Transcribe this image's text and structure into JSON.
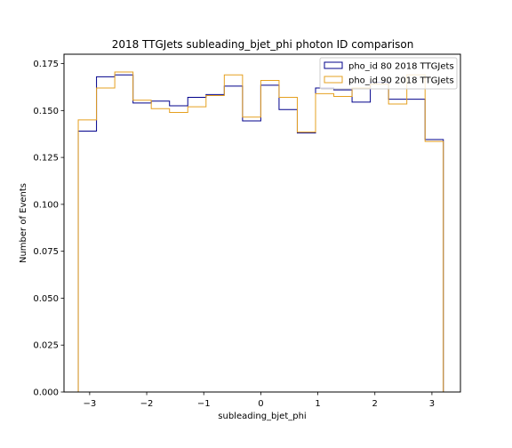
{
  "chart_data": {
    "type": "histogram-step",
    "title": "2018 TTGJets subleading_bjet_phi photon ID comparison",
    "xlabel": "subleading_bjet_phi",
    "ylabel": "Number of Events",
    "xlim": [
      -3.45,
      3.5
    ],
    "ylim": [
      0.0,
      0.18
    ],
    "grid": false,
    "legend_position": "top-right",
    "bin_edges": [
      -3.2,
      -2.88,
      -2.56,
      -2.24,
      -1.92,
      -1.6,
      -1.28,
      -0.96,
      -0.64,
      -0.32,
      0.0,
      0.32,
      0.64,
      0.96,
      1.28,
      1.6,
      1.92,
      2.24,
      2.56,
      2.88,
      3.2
    ],
    "x_ticks": [
      -3,
      -2,
      -1,
      0,
      1,
      2,
      3
    ],
    "x_tick_labels": [
      "−3",
      "−2",
      "−1",
      "0",
      "1",
      "2",
      "3"
    ],
    "y_ticks": [
      0.0,
      0.025,
      0.05,
      0.075,
      0.1,
      0.125,
      0.15,
      0.175
    ],
    "y_tick_labels": [
      "0.000",
      "0.025",
      "0.050",
      "0.075",
      "0.100",
      "0.125",
      "0.150",
      "0.175"
    ],
    "series": [
      {
        "name": "pho_id 80 2018 TTGJets",
        "color": "#00008b",
        "values": [
          0.139,
          0.168,
          0.169,
          0.154,
          0.155,
          0.1525,
          0.157,
          0.1585,
          0.163,
          0.1445,
          0.1635,
          0.1505,
          0.138,
          0.162,
          0.161,
          0.1545,
          0.165,
          0.156,
          0.156,
          0.1345
        ]
      },
      {
        "name": "pho_id 90 2018 TTGJets",
        "color": "#e5a020",
        "values": [
          0.145,
          0.162,
          0.1705,
          0.1555,
          0.151,
          0.149,
          0.152,
          0.158,
          0.169,
          0.1465,
          0.166,
          0.157,
          0.1385,
          0.159,
          0.1575,
          0.162,
          0.164,
          0.1535,
          0.169,
          0.1335
        ]
      }
    ]
  }
}
